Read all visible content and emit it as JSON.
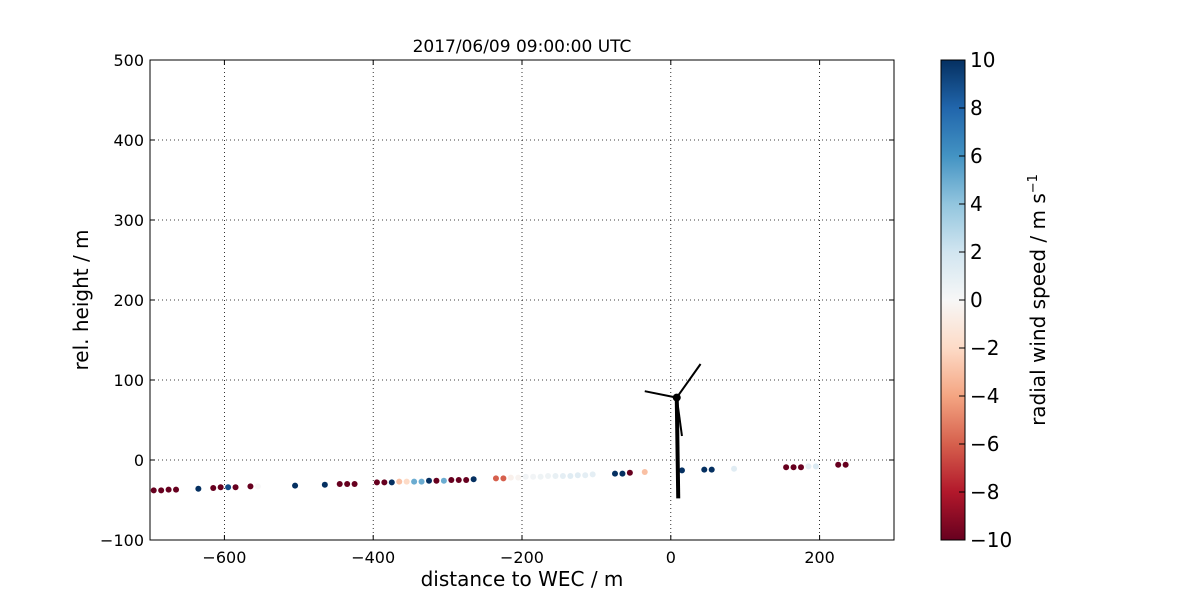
{
  "chart_data": {
    "type": "scatter",
    "title": "2017/06/09 09:00:00 UTC",
    "xlabel": "distance to WEC / m",
    "ylabel": "rel. height / m",
    "xlim": [
      -700,
      300
    ],
    "ylim": [
      -100,
      500
    ],
    "xticks": [
      -600,
      -400,
      -200,
      0,
      200
    ],
    "yticks": [
      -100,
      0,
      100,
      200,
      300,
      400,
      500
    ],
    "xtick_labels": [
      "−600",
      "−400",
      "−200",
      "0",
      "200"
    ],
    "ytick_labels": [
      "−100",
      "0",
      "100",
      "200",
      "300",
      "400",
      "500"
    ],
    "grid": true,
    "colorbar": {
      "label_main": "radial wind speed / m s",
      "label_exponent": "−1",
      "range": [
        -10,
        10
      ],
      "ticks": [
        -10,
        -8,
        -6,
        -4,
        -2,
        0,
        2,
        4,
        6,
        8,
        10
      ],
      "tick_labels": [
        "−10",
        "−8",
        "−6",
        "−4",
        "−2",
        "0",
        "2",
        "4",
        "6",
        "8",
        "10"
      ],
      "colormap": "RdBu"
    },
    "points": [
      {
        "x": -695,
        "y": -38,
        "v": -10
      },
      {
        "x": -685,
        "y": -38,
        "v": -10
      },
      {
        "x": -675,
        "y": -37,
        "v": -10
      },
      {
        "x": -665,
        "y": -37,
        "v": -10
      },
      {
        "x": -635,
        "y": -36,
        "v": 10
      },
      {
        "x": -615,
        "y": -35,
        "v": -10
      },
      {
        "x": -605,
        "y": -34,
        "v": -10
      },
      {
        "x": -595,
        "y": -34,
        "v": 9
      },
      {
        "x": -585,
        "y": -34,
        "v": -10
      },
      {
        "x": -565,
        "y": -33,
        "v": -10
      },
      {
        "x": -555,
        "y": -33,
        "v": 0
      },
      {
        "x": -505,
        "y": -32,
        "v": 10
      },
      {
        "x": -465,
        "y": -31,
        "v": 10
      },
      {
        "x": -445,
        "y": -30,
        "v": -10
      },
      {
        "x": -435,
        "y": -30,
        "v": -10
      },
      {
        "x": -425,
        "y": -30,
        "v": -10
      },
      {
        "x": -395,
        "y": -28,
        "v": -10
      },
      {
        "x": -385,
        "y": -28,
        "v": -10
      },
      {
        "x": -375,
        "y": -28,
        "v": 10
      },
      {
        "x": -365,
        "y": -27,
        "v": -3
      },
      {
        "x": -355,
        "y": -27,
        "v": -2
      },
      {
        "x": -345,
        "y": -27,
        "v": 5
      },
      {
        "x": -335,
        "y": -27,
        "v": 5
      },
      {
        "x": -325,
        "y": -26,
        "v": 10
      },
      {
        "x": -315,
        "y": -26,
        "v": -10
      },
      {
        "x": -305,
        "y": -26,
        "v": 5
      },
      {
        "x": -295,
        "y": -25,
        "v": -10
      },
      {
        "x": -285,
        "y": -25,
        "v": -10
      },
      {
        "x": -275,
        "y": -25,
        "v": -10
      },
      {
        "x": -265,
        "y": -24,
        "v": 10
      },
      {
        "x": -235,
        "y": -23,
        "v": -6
      },
      {
        "x": -225,
        "y": -23,
        "v": -6
      },
      {
        "x": -215,
        "y": -22,
        "v": -0.5
      },
      {
        "x": -205,
        "y": -22,
        "v": -0.3
      },
      {
        "x": -195,
        "y": -21,
        "v": 0.3
      },
      {
        "x": -185,
        "y": -21,
        "v": 0.3
      },
      {
        "x": -175,
        "y": -21,
        "v": 0.5
      },
      {
        "x": -165,
        "y": -20,
        "v": 0.5
      },
      {
        "x": -155,
        "y": -20,
        "v": 0.8
      },
      {
        "x": -145,
        "y": -20,
        "v": 1.0
      },
      {
        "x": -135,
        "y": -20,
        "v": 1.2
      },
      {
        "x": -125,
        "y": -19,
        "v": 1.2
      },
      {
        "x": -115,
        "y": -19,
        "v": 1.0
      },
      {
        "x": -105,
        "y": -18,
        "v": 1.0
      },
      {
        "x": -75,
        "y": -17,
        "v": 10
      },
      {
        "x": -65,
        "y": -17,
        "v": 10
      },
      {
        "x": -55,
        "y": -16,
        "v": -10
      },
      {
        "x": -35,
        "y": -15,
        "v": -3
      },
      {
        "x": 15,
        "y": -13,
        "v": 10
      },
      {
        "x": 45,
        "y": -12,
        "v": 10
      },
      {
        "x": 55,
        "y": -12,
        "v": 10
      },
      {
        "x": 85,
        "y": -11,
        "v": 1.2
      },
      {
        "x": 155,
        "y": -9,
        "v": -10
      },
      {
        "x": 165,
        "y": -9,
        "v": -10
      },
      {
        "x": 175,
        "y": -9,
        "v": -10
      },
      {
        "x": 185,
        "y": -8,
        "v": 1.0
      },
      {
        "x": 195,
        "y": -8,
        "v": 1.5
      },
      {
        "x": 225,
        "y": -6,
        "v": -10
      },
      {
        "x": 235,
        "y": -6,
        "v": -10
      }
    ],
    "turbine": {
      "tower_base": [
        10,
        -48
      ],
      "hub": [
        8,
        78
      ],
      "blade_tips": [
        [
          40,
          120
        ],
        [
          -35,
          86
        ],
        [
          15,
          30
        ]
      ]
    }
  }
}
